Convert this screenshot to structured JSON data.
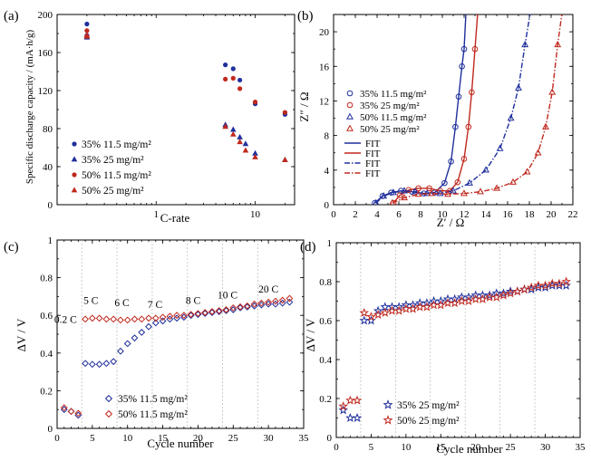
{
  "colors": {
    "blue": "#1f2f9c",
    "red": "#c0281e"
  },
  "chart_data": [
    {
      "panel": "(a)",
      "type": "scatter",
      "xscale": "log",
      "xlim": [
        0.1,
        25
      ],
      "ylim": [
        0,
        200
      ],
      "xlabel": "C-rate",
      "ylabel": "Specific discharge capacity / (mA·h/g)",
      "xticks": [
        1,
        10
      ],
      "yticks": [
        0,
        40,
        80,
        120,
        160,
        200
      ],
      "legend_position": "lower-left",
      "series": [
        {
          "name": "35%  11.5 mg/m²",
          "marker": "circle",
          "color": "#1f2f9c",
          "x": [
            0.2,
            0.2,
            5,
            6,
            7,
            10,
            20
          ],
          "y": [
            190,
            178,
            147,
            143,
            131,
            106,
            95
          ]
        },
        {
          "name": "35%  25 mg/m²",
          "marker": "triangle",
          "color": "#1f2f9c",
          "x": [
            0.2,
            0.2,
            5,
            6,
            7,
            8,
            10,
            20
          ],
          "y": [
            178,
            176,
            84,
            79,
            71,
            64,
            54,
            47
          ]
        },
        {
          "name": "50%  11.5 mg/m²",
          "marker": "circle",
          "color": "#c0281e",
          "x": [
            0.2,
            0.2,
            5,
            6,
            7,
            10,
            20
          ],
          "y": [
            183,
            177,
            132,
            133,
            122,
            108,
            97
          ]
        },
        {
          "name": "50%  25 mg/m²",
          "marker": "triangle",
          "color": "#c0281e",
          "x": [
            0.2,
            0.2,
            5,
            6,
            7,
            8,
            10,
            20
          ],
          "y": [
            178,
            177,
            82,
            74,
            66,
            57,
            50,
            47
          ]
        }
      ]
    },
    {
      "panel": "(b)",
      "type": "scatter",
      "xlim": [
        0,
        22
      ],
      "ylim": [
        0,
        22
      ],
      "xlabel": "Z′ / Ω",
      "ylabel": "Z″ / Ω",
      "xticks": [
        0,
        2,
        4,
        6,
        8,
        10,
        12,
        14,
        16,
        18,
        20,
        22
      ],
      "yticks": [
        0,
        4,
        8,
        12,
        16,
        20
      ],
      "legend_position": "center-left",
      "series": [
        {
          "name": "35%  11.5 mg/m²",
          "marker": "circle",
          "color": "#1f2f9c",
          "x": [
            3.8,
            4.5,
            5.3,
            6.2,
            7.2,
            8.3,
            9.3,
            10.2,
            10.8,
            11.2,
            11.5,
            11.8,
            12.0
          ],
          "y": [
            0.2,
            1.0,
            1.4,
            1.6,
            1.5,
            1.3,
            1.4,
            2.5,
            5.0,
            9.0,
            12.5,
            16.0,
            18.0
          ]
        },
        {
          "name": "35%  25 mg/m²",
          "marker": "circle",
          "color": "#c0281e",
          "x": [
            5.5,
            6.1,
            6.9,
            7.8,
            8.8,
            9.8,
            10.7,
            11.4,
            12.0,
            12.4,
            12.7,
            13.0
          ],
          "y": [
            0.2,
            1.1,
            1.7,
            1.9,
            1.9,
            1.6,
            1.6,
            2.6,
            5.3,
            9.0,
            13.0,
            18.0
          ]
        },
        {
          "name": "50%  11.5 mg/m²",
          "marker": "triangle",
          "color": "#1f2f9c",
          "x": [
            3.9,
            4.6,
            5.5,
            6.5,
            7.5,
            8.6,
            9.8,
            11.0,
            12.5,
            14.0,
            15.3,
            16.3,
            17.0,
            17.6
          ],
          "y": [
            0.2,
            1.0,
            1.4,
            1.6,
            1.5,
            1.3,
            1.3,
            1.6,
            2.5,
            4.0,
            6.5,
            10.0,
            13.5,
            18.5
          ]
        },
        {
          "name": "50%  25 mg/m²",
          "marker": "triangle",
          "color": "#c0281e",
          "x": [
            5.4,
            6.5,
            7.8,
            9.0,
            10.5,
            12.0,
            13.5,
            15.0,
            16.5,
            17.8,
            18.8,
            19.5,
            20.1,
            20.6
          ],
          "y": [
            0.2,
            0.8,
            1.2,
            1.3,
            1.2,
            1.3,
            1.5,
            1.9,
            2.6,
            3.8,
            6.0,
            9.0,
            13.0,
            18.5
          ]
        }
      ],
      "fit_lines": [
        {
          "name": "FIT",
          "style": "solid",
          "color": "#1f2f9c"
        },
        {
          "name": "FIT",
          "style": "solid",
          "color": "#c0281e"
        },
        {
          "name": "FIT",
          "style": "dashdot",
          "color": "#1f2f9c"
        },
        {
          "name": "FIT",
          "style": "dashdot",
          "color": "#c0281e"
        }
      ]
    },
    {
      "panel": "(c)",
      "type": "scatter",
      "xlim": [
        0,
        35
      ],
      "ylim": [
        0,
        1.0
      ],
      "xlabel": "Cycle number",
      "ylabel": "ΔV / V",
      "xticks": [
        0,
        5,
        10,
        15,
        20,
        25,
        30,
        35
      ],
      "yticks": [
        0,
        0.2,
        0.4,
        0.6,
        0.8,
        1.0
      ],
      "legend_position": "lower-center",
      "rate_labels": [
        "0.2 C",
        "5 C",
        "6 C",
        "7 C",
        "8 C",
        "10 C",
        "20 C"
      ],
      "rate_dividers": [
        3.5,
        8.5,
        13.5,
        18.5,
        23.5,
        28.5
      ],
      "series": [
        {
          "name": "35%  11.5 mg/m²",
          "marker": "diamond",
          "color": "#1f2f9c",
          "x": [
            1,
            2,
            3,
            4,
            5,
            6,
            7,
            8,
            9,
            10,
            11,
            12,
            13,
            14,
            15,
            16,
            17,
            18,
            19,
            20,
            21,
            22,
            23,
            24,
            25,
            26,
            27,
            28,
            29,
            30,
            31,
            32,
            33
          ],
          "y": [
            0.1,
            0.09,
            0.07,
            0.345,
            0.34,
            0.34,
            0.345,
            0.355,
            0.41,
            0.45,
            0.48,
            0.51,
            0.54,
            0.56,
            0.57,
            0.58,
            0.585,
            0.59,
            0.6,
            0.605,
            0.61,
            0.615,
            0.62,
            0.625,
            0.63,
            0.64,
            0.645,
            0.65,
            0.655,
            0.66,
            0.66,
            0.665,
            0.67
          ]
        },
        {
          "name": "50%  11.5 mg/m²",
          "marker": "diamond",
          "color": "#c0281e",
          "x": [
            1,
            2,
            3,
            4,
            5,
            6,
            7,
            8,
            9,
            10,
            11,
            12,
            13,
            14,
            15,
            16,
            17,
            18,
            19,
            20,
            21,
            22,
            23,
            24,
            25,
            26,
            27,
            28,
            29,
            30,
            31,
            32,
            33
          ],
          "y": [
            0.11,
            0.09,
            0.08,
            0.58,
            0.585,
            0.585,
            0.58,
            0.58,
            0.575,
            0.575,
            0.58,
            0.58,
            0.585,
            0.585,
            0.59,
            0.595,
            0.6,
            0.6,
            0.605,
            0.61,
            0.615,
            0.62,
            0.625,
            0.63,
            0.64,
            0.645,
            0.65,
            0.66,
            0.665,
            0.67,
            0.675,
            0.68,
            0.69
          ]
        }
      ]
    },
    {
      "panel": "(d)",
      "type": "scatter",
      "xlim": [
        0,
        35
      ],
      "ylim": [
        0,
        1.0
      ],
      "xlabel": "Cycle number",
      "ylabel": "ΔV / V",
      "xticks": [
        0,
        5,
        10,
        15,
        20,
        25,
        30,
        35
      ],
      "yticks": [
        0,
        0.2,
        0.4,
        0.6,
        0.8,
        1.0
      ],
      "legend_position": "lower-center",
      "rate_dividers": [
        3.5,
        8.5,
        13.5,
        18.5,
        23.5,
        28.5
      ],
      "series": [
        {
          "name": "35%  25 mg/m²",
          "marker": "star",
          "color": "#1f2f9c",
          "x": [
            1,
            2,
            3,
            4,
            5,
            6,
            7,
            8,
            9,
            10,
            11,
            12,
            13,
            14,
            15,
            16,
            17,
            18,
            19,
            20,
            21,
            22,
            23,
            24,
            25,
            26,
            27,
            28,
            29,
            30,
            31,
            32,
            33
          ],
          "y": [
            0.14,
            0.1,
            0.1,
            0.6,
            0.6,
            0.65,
            0.67,
            0.67,
            0.67,
            0.68,
            0.68,
            0.69,
            0.69,
            0.7,
            0.7,
            0.71,
            0.71,
            0.72,
            0.72,
            0.73,
            0.73,
            0.73,
            0.74,
            0.74,
            0.75,
            0.75,
            0.76,
            0.76,
            0.77,
            0.77,
            0.78,
            0.78,
            0.78
          ]
        },
        {
          "name": "50%  25 mg/m²",
          "marker": "star",
          "color": "#c0281e",
          "x": [
            1,
            2,
            3,
            4,
            5,
            6,
            7,
            8,
            9,
            10,
            11,
            12,
            13,
            14,
            15,
            16,
            17,
            18,
            19,
            20,
            21,
            22,
            23,
            24,
            25,
            26,
            27,
            28,
            29,
            30,
            31,
            32,
            33
          ],
          "y": [
            0.16,
            0.19,
            0.19,
            0.64,
            0.62,
            0.63,
            0.64,
            0.65,
            0.65,
            0.66,
            0.66,
            0.67,
            0.67,
            0.68,
            0.68,
            0.69,
            0.69,
            0.7,
            0.7,
            0.71,
            0.71,
            0.72,
            0.72,
            0.73,
            0.74,
            0.75,
            0.76,
            0.77,
            0.78,
            0.78,
            0.79,
            0.79,
            0.8
          ]
        }
      ]
    }
  ]
}
